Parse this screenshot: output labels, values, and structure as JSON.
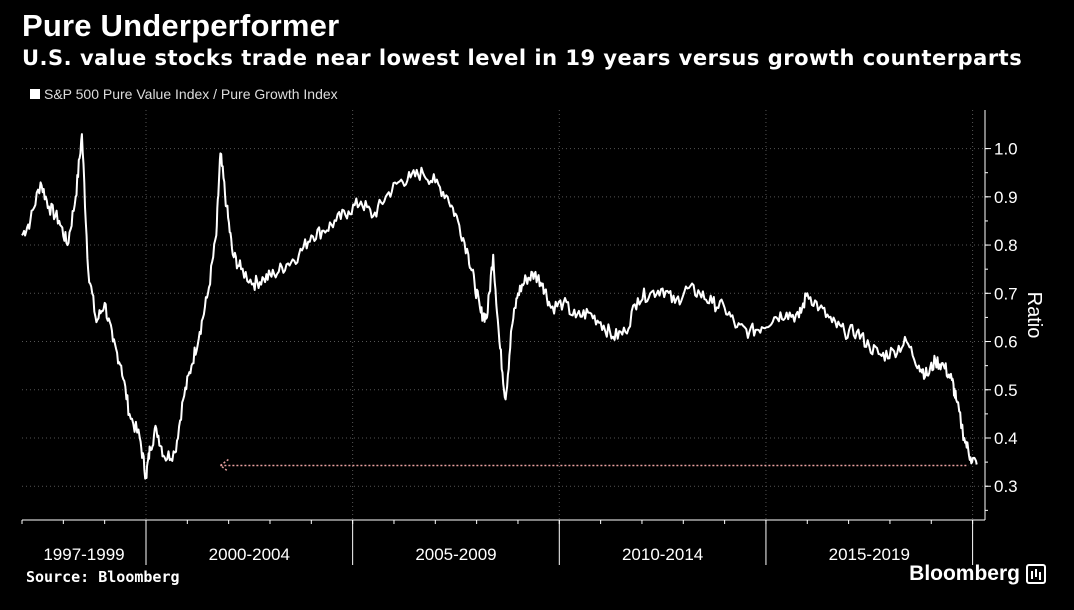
{
  "header": {
    "title": "Pure Underperformer",
    "subtitle": "U.S. value stocks trade near lowest level in 19 years versus growth counterparts"
  },
  "footer": {
    "source": "Source: Bloomberg",
    "brand": "Bloomberg",
    "brand_icon": "bloomberg-chart-icon"
  },
  "colors": {
    "background": "#000000",
    "line": "#ffffff",
    "grid": "#555555",
    "reference_line": "#e8a0a0"
  },
  "chart_data": {
    "type": "line",
    "title": "Pure Underperformer",
    "subtitle": "U.S. value stocks trade near lowest level in 19 years versus growth counterparts",
    "ylabel": "Ratio",
    "ylim": [
      0.23,
      1.08
    ],
    "xlim": [
      1997.0,
      2020.3
    ],
    "yticks": [
      "0.3",
      "0.4",
      "0.5",
      "0.6",
      "0.7",
      "0.8",
      "0.9",
      "1.0"
    ],
    "xtick_labels": [
      "1997-1999",
      "2000-2004",
      "2005-2009",
      "2010-2014",
      "2015-2019"
    ],
    "grid": true,
    "legend_position": "top-left",
    "reference_line": {
      "y": 0.343,
      "x_start": 2001.8,
      "x_end": 2019.9,
      "style": "dotted-arrow-left"
    },
    "series": [
      {
        "name": "S&P 500 Pure Value Index / Pure Growth Index",
        "x": [
          1997.0,
          1997.2,
          1997.45,
          1997.65,
          1997.9,
          1998.1,
          1998.3,
          1998.45,
          1998.6,
          1998.8,
          1999.0,
          1999.2,
          1999.4,
          1999.6,
          1999.85,
          2000.0,
          2000.1,
          2000.25,
          2000.45,
          2000.7,
          2000.9,
          2001.1,
          2001.3,
          2001.5,
          2001.7,
          2001.8,
          2001.95,
          2002.1,
          2002.3,
          2002.6,
          2002.85,
          2003.1,
          2003.4,
          2003.7,
          2004.0,
          2004.3,
          2004.6,
          2004.9,
          2005.2,
          2005.5,
          2005.8,
          2006.1,
          2006.4,
          2006.7,
          2007.0,
          2007.3,
          2007.55,
          2007.8,
          2007.95,
          2008.1,
          2008.25,
          2008.4,
          2008.55,
          2008.7,
          2008.85,
          2009.0,
          2009.2,
          2009.4,
          2009.6,
          2009.8,
          2010.1,
          2010.4,
          2010.7,
          2011.0,
          2011.3,
          2011.6,
          2011.9,
          2012.2,
          2012.5,
          2012.8,
          2013.1,
          2013.4,
          2013.7,
          2014.0,
          2014.3,
          2014.6,
          2014.9,
          2015.2,
          2015.5,
          2015.8,
          2016.0,
          2016.3,
          2016.6,
          2016.9,
          2017.2,
          2017.5,
          2017.8,
          2018.1,
          2018.4,
          2018.7,
          2018.9,
          2019.1,
          2019.3,
          2019.5,
          2019.6,
          2019.8,
          2019.95,
          2020.1
        ],
        "values": [
          0.82,
          0.85,
          0.93,
          0.88,
          0.85,
          0.8,
          0.9,
          1.03,
          0.75,
          0.64,
          0.68,
          0.6,
          0.55,
          0.45,
          0.4,
          0.32,
          0.38,
          0.42,
          0.36,
          0.37,
          0.48,
          0.55,
          0.62,
          0.7,
          0.82,
          0.99,
          0.88,
          0.78,
          0.75,
          0.72,
          0.73,
          0.74,
          0.76,
          0.78,
          0.82,
          0.83,
          0.85,
          0.87,
          0.89,
          0.86,
          0.9,
          0.93,
          0.94,
          0.95,
          0.93,
          0.9,
          0.85,
          0.78,
          0.72,
          0.66,
          0.65,
          0.78,
          0.6,
          0.48,
          0.63,
          0.7,
          0.73,
          0.74,
          0.72,
          0.67,
          0.68,
          0.65,
          0.66,
          0.64,
          0.61,
          0.62,
          0.69,
          0.7,
          0.71,
          0.68,
          0.71,
          0.7,
          0.68,
          0.67,
          0.63,
          0.62,
          0.63,
          0.65,
          0.66,
          0.65,
          0.7,
          0.67,
          0.64,
          0.62,
          0.62,
          0.59,
          0.57,
          0.58,
          0.6,
          0.55,
          0.53,
          0.56,
          0.55,
          0.52,
          0.48,
          0.4,
          0.36,
          0.345
        ]
      }
    ]
  }
}
